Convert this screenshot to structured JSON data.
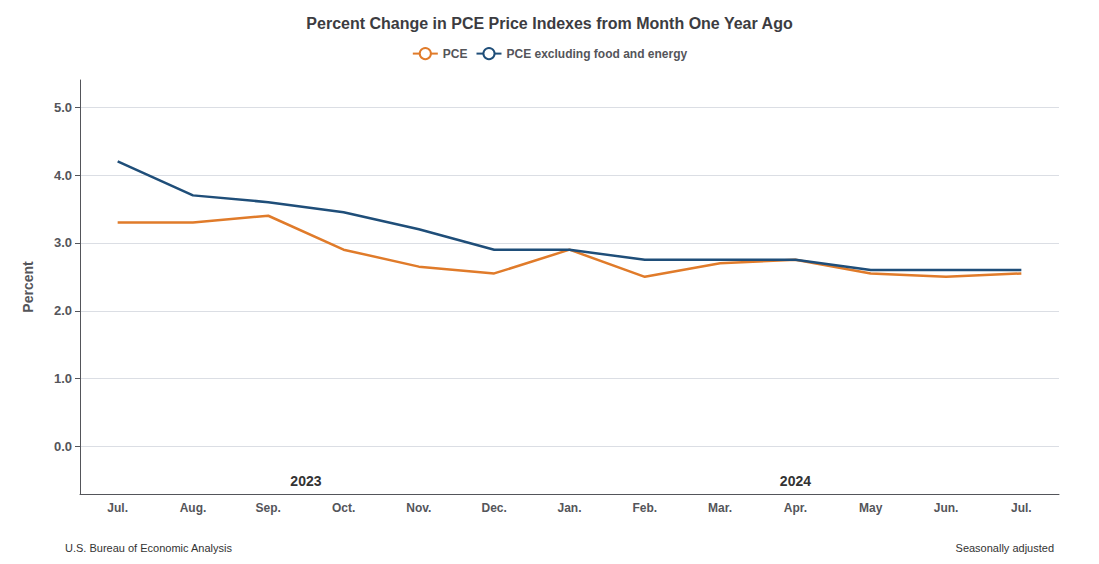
{
  "chart_data": {
    "type": "line",
    "title": "Percent Change in PCE Price Indexes from Month One Year Ago",
    "y_label": "Percent",
    "categories": [
      "Jul.",
      "Aug.",
      "Sep.",
      "Oct.",
      "Nov.",
      "Dec.",
      "Jan.",
      "Feb.",
      "Mar.",
      "Apr.",
      "May",
      "Jun.",
      "Jul."
    ],
    "category_groups": [
      {
        "label": "2023",
        "count": 6
      },
      {
        "label": "2024",
        "count": 7
      }
    ],
    "series": [
      {
        "name": "PCE",
        "color": "#E07B2A",
        "values": [
          3.3,
          3.3,
          3.4,
          2.9,
          2.65,
          2.55,
          2.9,
          2.5,
          2.7,
          2.75,
          2.55,
          2.5,
          2.55
        ]
      },
      {
        "name": "PCE excluding food and energy",
        "color": "#1F4E79",
        "values": [
          4.2,
          3.7,
          3.6,
          3.45,
          3.2,
          2.9,
          2.9,
          2.75,
          2.75,
          2.75,
          2.6,
          2.6,
          2.6
        ]
      }
    ],
    "ylim": [
      -0.7,
      5.4
    ],
    "yticks": [
      {
        "value": 0,
        "label": "0.0"
      },
      {
        "value": 1,
        "label": "1.0"
      },
      {
        "value": 2,
        "label": "2.0"
      },
      {
        "value": 3,
        "label": "3.0"
      },
      {
        "value": 4,
        "label": "4.0"
      },
      {
        "value": 5,
        "label": "5.0"
      }
    ],
    "grid": true,
    "legend": "top",
    "source": "U.S. Bureau of Economic Analysis",
    "note": "Seasonally adjusted"
  }
}
